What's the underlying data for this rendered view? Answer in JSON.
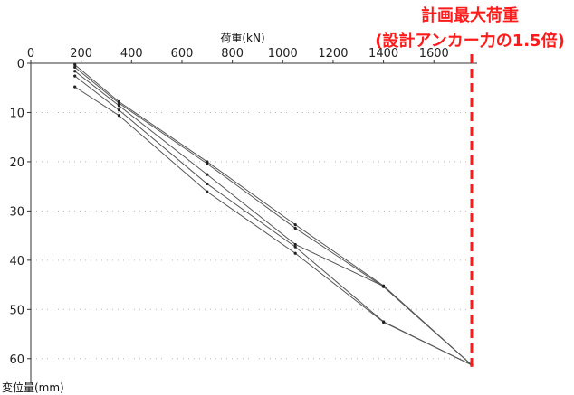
{
  "chart_data": {
    "type": "line",
    "xlabel": "荷重(kN)",
    "ylabel": "変位量(mm)",
    "xlim": [
      0,
      1750
    ],
    "ylim": [
      0,
      65
    ],
    "x_ticks": [
      0,
      200,
      400,
      600,
      800,
      1000,
      1200,
      1400,
      1600
    ],
    "y_ticks": [
      0,
      10,
      20,
      30,
      40,
      50,
      60
    ],
    "grid": true,
    "annotation": {
      "line1": "計画最大荷重",
      "line2": "(設計アンカー力の1.5倍)",
      "x": 1750,
      "color": "#ff1a1a"
    },
    "series": [
      {
        "x": [
          175,
          350,
          700,
          1050,
          1400,
          1750
        ],
        "y": [
          0.3,
          7.8,
          20.0,
          32.8,
          45.2,
          61.3
        ]
      },
      {
        "x": [
          175,
          350,
          700,
          1050,
          1400,
          1750
        ],
        "y": [
          0.8,
          8.1,
          20.4,
          33.5,
          45.4,
          61.3
        ]
      },
      {
        "x": [
          175,
          350,
          700,
          1050,
          1400,
          1750
        ],
        "y": [
          1.6,
          8.6,
          22.6,
          36.8,
          45.3,
          61.3
        ]
      },
      {
        "x": [
          175,
          350,
          700,
          1050,
          1400,
          1750
        ],
        "y": [
          2.6,
          9.5,
          24.5,
          37.3,
          52.5,
          61.3
        ]
      },
      {
        "x": [
          175,
          350,
          700,
          1050,
          1400,
          1750
        ],
        "y": [
          4.8,
          10.6,
          26.1,
          38.6,
          52.6,
          61.3
        ]
      }
    ],
    "line_color": "#555555"
  }
}
